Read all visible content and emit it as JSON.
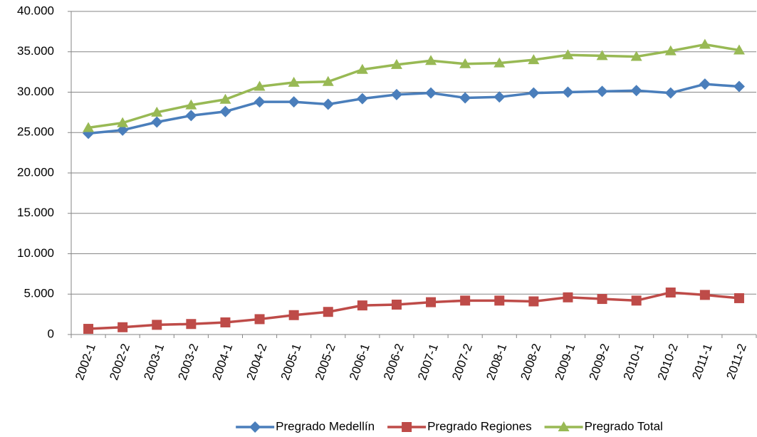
{
  "chart_data": {
    "type": "line",
    "categories": [
      "2002-1",
      "2002-2",
      "2003-1",
      "2003-2",
      "2004-1",
      "2004-2",
      "2005-1",
      "2005-2",
      "2006-1",
      "2006-2",
      "2007-1",
      "2007-2",
      "2008-1",
      "2008-2",
      "2009-1",
      "2009-2",
      "2010-1",
      "2010-2",
      "2011-1",
      "2011-2"
    ],
    "series": [
      {
        "name": "Pregrado Medellín",
        "color": "#4a7ebb",
        "marker": "diamond",
        "values": [
          24900,
          25300,
          26300,
          27100,
          27600,
          28800,
          28800,
          28500,
          29200,
          29700,
          29900,
          29300,
          29400,
          29900,
          30000,
          30100,
          30200,
          29900,
          31000,
          30700
        ]
      },
      {
        "name": "Pregrado Regiones",
        "color": "#be4b48",
        "marker": "square",
        "values": [
          700,
          900,
          1200,
          1300,
          1500,
          1900,
          2400,
          2800,
          3600,
          3700,
          4000,
          4200,
          4200,
          4100,
          4600,
          4400,
          4200,
          5200,
          4900,
          4500
        ]
      },
      {
        "name": "Pregrado Total",
        "color": "#98b954",
        "marker": "triangle",
        "values": [
          25600,
          26200,
          27500,
          28400,
          29100,
          30700,
          31200,
          31300,
          32800,
          33400,
          33900,
          33500,
          33600,
          34000,
          34600,
          34500,
          34400,
          35100,
          35900,
          35200
        ]
      }
    ],
    "ylim": [
      0,
      40000
    ],
    "yticks": [
      0,
      {
        "value": 5000,
        "label": "5.000"
      },
      {
        "value": 10000,
        "label": "10.000"
      },
      {
        "value": 15000,
        "label": "15.000"
      },
      {
        "value": 20000,
        "label": "20.000"
      },
      {
        "value": 25000,
        "label": "25.000"
      },
      {
        "value": 30000,
        "label": "30.000"
      },
      {
        "value": 35000,
        "label": "35.000"
      },
      {
        "value": 40000,
        "label": "40.000"
      }
    ],
    "grid": true,
    "legend": "bottom"
  }
}
